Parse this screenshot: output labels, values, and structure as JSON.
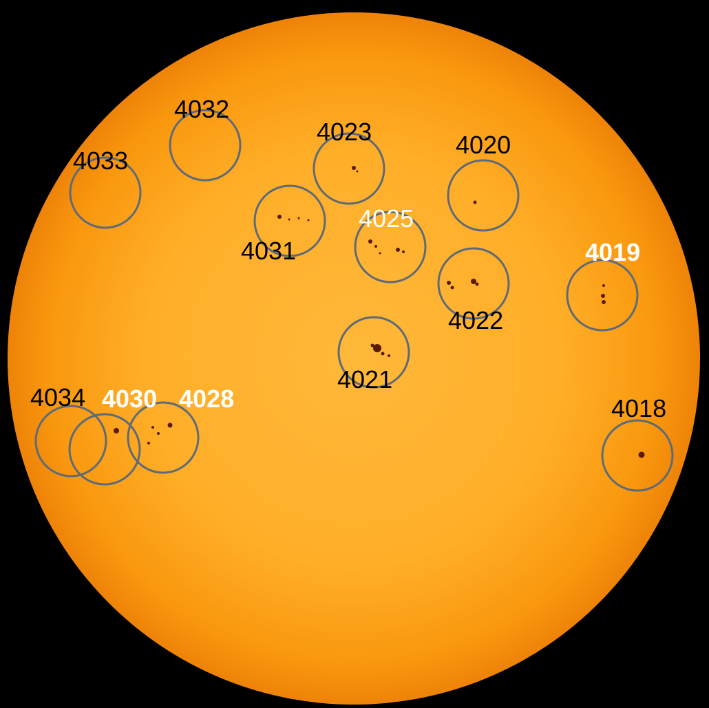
{
  "image": {
    "background_color": "#000000",
    "sun_color_center": "#FFB62E",
    "sun_color_limb": "#F08A0C",
    "circle_color": "#5E6A78",
    "label_color_dark": "#000000",
    "label_color_light": "#FFFFFF"
  },
  "regions": [
    {
      "id": "4018",
      "label": "4018",
      "label_style": "dark"
    },
    {
      "id": "4019",
      "label": "4019",
      "label_style": "light-bold"
    },
    {
      "id": "4020",
      "label": "4020",
      "label_style": "dark"
    },
    {
      "id": "4021",
      "label": "4021",
      "label_style": "dark"
    },
    {
      "id": "4022",
      "label": "4022",
      "label_style": "dark"
    },
    {
      "id": "4023",
      "label": "4023",
      "label_style": "dark"
    },
    {
      "id": "4025",
      "label": "4025",
      "label_style": "light"
    },
    {
      "id": "4028",
      "label": "4028",
      "label_style": "light-bold"
    },
    {
      "id": "4030",
      "label": "4030",
      "label_style": "light-bold"
    },
    {
      "id": "4031",
      "label": "4031",
      "label_style": "dark"
    },
    {
      "id": "4032",
      "label": "4032",
      "label_style": "dark"
    },
    {
      "id": "4033",
      "label": "4033",
      "label_style": "dark"
    },
    {
      "id": "4034",
      "label": "4034",
      "label_style": "dark"
    }
  ]
}
